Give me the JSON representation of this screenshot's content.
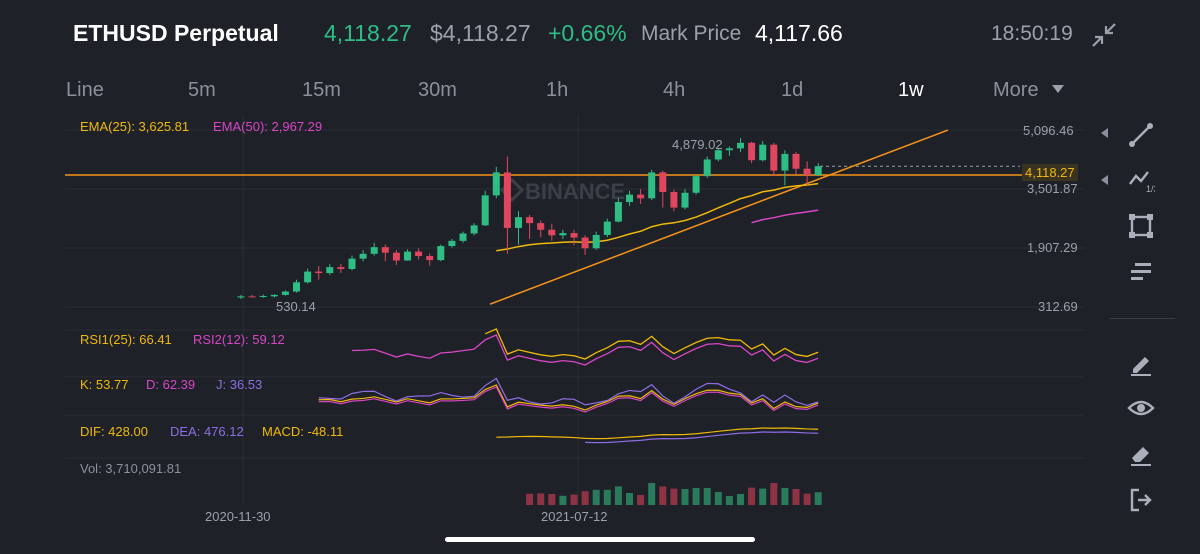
{
  "header": {
    "symbol": "ETHUSD Perpetual",
    "last_price": "4,118.27",
    "usd_price": "$4,118.27",
    "change": "+0.66%",
    "mark_price_label": "Mark Price",
    "mark_price": "4,117.66",
    "time": "18:50:19"
  },
  "tabs": [
    {
      "label": "Line"
    },
    {
      "label": "5m"
    },
    {
      "label": "15m"
    },
    {
      "label": "30m"
    },
    {
      "label": "1h"
    },
    {
      "label": "4h"
    },
    {
      "label": "1d"
    },
    {
      "label": "1w"
    },
    {
      "label": "More"
    }
  ],
  "active_tab": "1w",
  "indicators": {
    "ema25": "EMA(25): 3,625.81",
    "ema50": "EMA(50): 2,967.29",
    "rsi1": "RSI1(25): 66.41",
    "rsi2": "RSI2(12): 59.12",
    "k": "K: 53.77",
    "d": "D: 62.39",
    "j": "J: 36.53",
    "dif": "DIF: 428.00",
    "dea": "DEA: 476.12",
    "macd": "MACD: -48.11",
    "vol": "Vol: 3,710,091.81"
  },
  "price_axis": {
    "labels": [
      "5,096.46",
      "3,501.87",
      "1,907.29",
      "312.69"
    ],
    "current": "4,118.27"
  },
  "annotations": {
    "high": "4,879.02",
    "low": "530.14"
  },
  "x_axis": [
    "2020-11-30",
    "2021-07-12"
  ],
  "watermark": "BINANCE",
  "colors": {
    "background": "#1e2127",
    "up": "#2ebd85",
    "down": "#e0475f",
    "ema25": "#f0b90b",
    "ema50": "#d846c6",
    "trendline": "#f7931a",
    "macd_dif": "#f0b90b",
    "macd_dea": "#8f6ee5"
  },
  "toolbar_icons": [
    "trend-line-icon",
    "fib-icon",
    "rectangle-icon",
    "menu-lines-icon",
    "pencil-icon",
    "eye-icon",
    "eraser-icon",
    "exit-icon"
  ],
  "chart_data": {
    "type": "candlestick",
    "interval": "1w",
    "x_start": "2020-11-30",
    "x_mid": "2021-07-12",
    "y_range": [
      312.69,
      5096.46
    ],
    "candles": [
      {
        "o": 570,
        "c": 600,
        "h": 640,
        "l": 530
      },
      {
        "o": 600,
        "c": 590,
        "h": 640,
        "l": 570
      },
      {
        "o": 590,
        "c": 610,
        "h": 650,
        "l": 560
      },
      {
        "o": 600,
        "c": 640,
        "h": 660,
        "l": 570
      },
      {
        "o": 640,
        "c": 730,
        "h": 760,
        "l": 620
      },
      {
        "o": 730,
        "c": 980,
        "h": 1050,
        "l": 700
      },
      {
        "o": 980,
        "c": 1270,
        "h": 1350,
        "l": 950
      },
      {
        "o": 1270,
        "c": 1230,
        "h": 1420,
        "l": 1050
      },
      {
        "o": 1230,
        "c": 1390,
        "h": 1470,
        "l": 1180
      },
      {
        "o": 1390,
        "c": 1340,
        "h": 1480,
        "l": 1230
      },
      {
        "o": 1340,
        "c": 1620,
        "h": 1700,
        "l": 1300
      },
      {
        "o": 1620,
        "c": 1750,
        "h": 1850,
        "l": 1550
      },
      {
        "o": 1750,
        "c": 1930,
        "h": 2050,
        "l": 1700
      },
      {
        "o": 1930,
        "c": 1780,
        "h": 2000,
        "l": 1550
      },
      {
        "o": 1780,
        "c": 1570,
        "h": 1850,
        "l": 1450
      },
      {
        "o": 1570,
        "c": 1810,
        "h": 1870,
        "l": 1560
      },
      {
        "o": 1810,
        "c": 1690,
        "h": 1900,
        "l": 1600
      },
      {
        "o": 1690,
        "c": 1580,
        "h": 1760,
        "l": 1430
      },
      {
        "o": 1580,
        "c": 1960,
        "h": 2000,
        "l": 1550
      },
      {
        "o": 1960,
        "c": 2100,
        "h": 2150,
        "l": 1920
      },
      {
        "o": 2100,
        "c": 2300,
        "h": 2350,
        "l": 2050
      },
      {
        "o": 2300,
        "c": 2520,
        "h": 2580,
        "l": 2250
      },
      {
        "o": 2520,
        "c": 3330,
        "h": 3450,
        "l": 2500
      },
      {
        "o": 3330,
        "c": 3950,
        "h": 4100,
        "l": 3250
      },
      {
        "o": 3950,
        "c": 2450,
        "h": 4380,
        "l": 1750
      },
      {
        "o": 2450,
        "c": 2740,
        "h": 2900,
        "l": 2000
      },
      {
        "o": 2740,
        "c": 2580,
        "h": 2800,
        "l": 2150
      },
      {
        "o": 2580,
        "c": 2400,
        "h": 2650,
        "l": 2200
      },
      {
        "o": 2400,
        "c": 2250,
        "h": 2560,
        "l": 2100
      },
      {
        "o": 2250,
        "c": 2310,
        "h": 2400,
        "l": 2150
      },
      {
        "o": 2310,
        "c": 2190,
        "h": 2400,
        "l": 1980
      },
      {
        "o": 2190,
        "c": 1900,
        "h": 2250,
        "l": 1720
      },
      {
        "o": 1900,
        "c": 2260,
        "h": 2350,
        "l": 1860
      },
      {
        "o": 2260,
        "c": 2620,
        "h": 2700,
        "l": 2200
      },
      {
        "o": 2620,
        "c": 3150,
        "h": 3250,
        "l": 2600
      },
      {
        "o": 3150,
        "c": 3350,
        "h": 3450,
        "l": 3050
      },
      {
        "o": 3350,
        "c": 3250,
        "h": 3500,
        "l": 3100
      },
      {
        "o": 3250,
        "c": 3950,
        "h": 4020,
        "l": 3200
      },
      {
        "o": 3950,
        "c": 3420,
        "h": 4000,
        "l": 3000
      },
      {
        "o": 3420,
        "c": 3000,
        "h": 3480,
        "l": 2900
      },
      {
        "o": 3000,
        "c": 3400,
        "h": 3500,
        "l": 2950
      },
      {
        "o": 3400,
        "c": 3850,
        "h": 3900,
        "l": 3350
      },
      {
        "o": 3850,
        "c": 4300,
        "h": 4380,
        "l": 3800
      },
      {
        "o": 4300,
        "c": 4550,
        "h": 4600,
        "l": 4250
      },
      {
        "o": 4550,
        "c": 4600,
        "h": 4650,
        "l": 4400
      },
      {
        "o": 4600,
        "c": 4750,
        "h": 4879,
        "l": 4500
      },
      {
        "o": 4750,
        "c": 4280,
        "h": 4780,
        "l": 4200
      },
      {
        "o": 4280,
        "c": 4700,
        "h": 4800,
        "l": 4250
      },
      {
        "o": 4700,
        "c": 4000,
        "h": 4750,
        "l": 3850
      },
      {
        "o": 4000,
        "c": 4450,
        "h": 4550,
        "l": 3600
      },
      {
        "o": 4450,
        "c": 4050,
        "h": 4500,
        "l": 3900
      },
      {
        "o": 4050,
        "c": 3880,
        "h": 4250,
        "l": 3600
      },
      {
        "o": 3880,
        "c": 4118.27,
        "h": 4200,
        "l": 3850
      }
    ]
  }
}
